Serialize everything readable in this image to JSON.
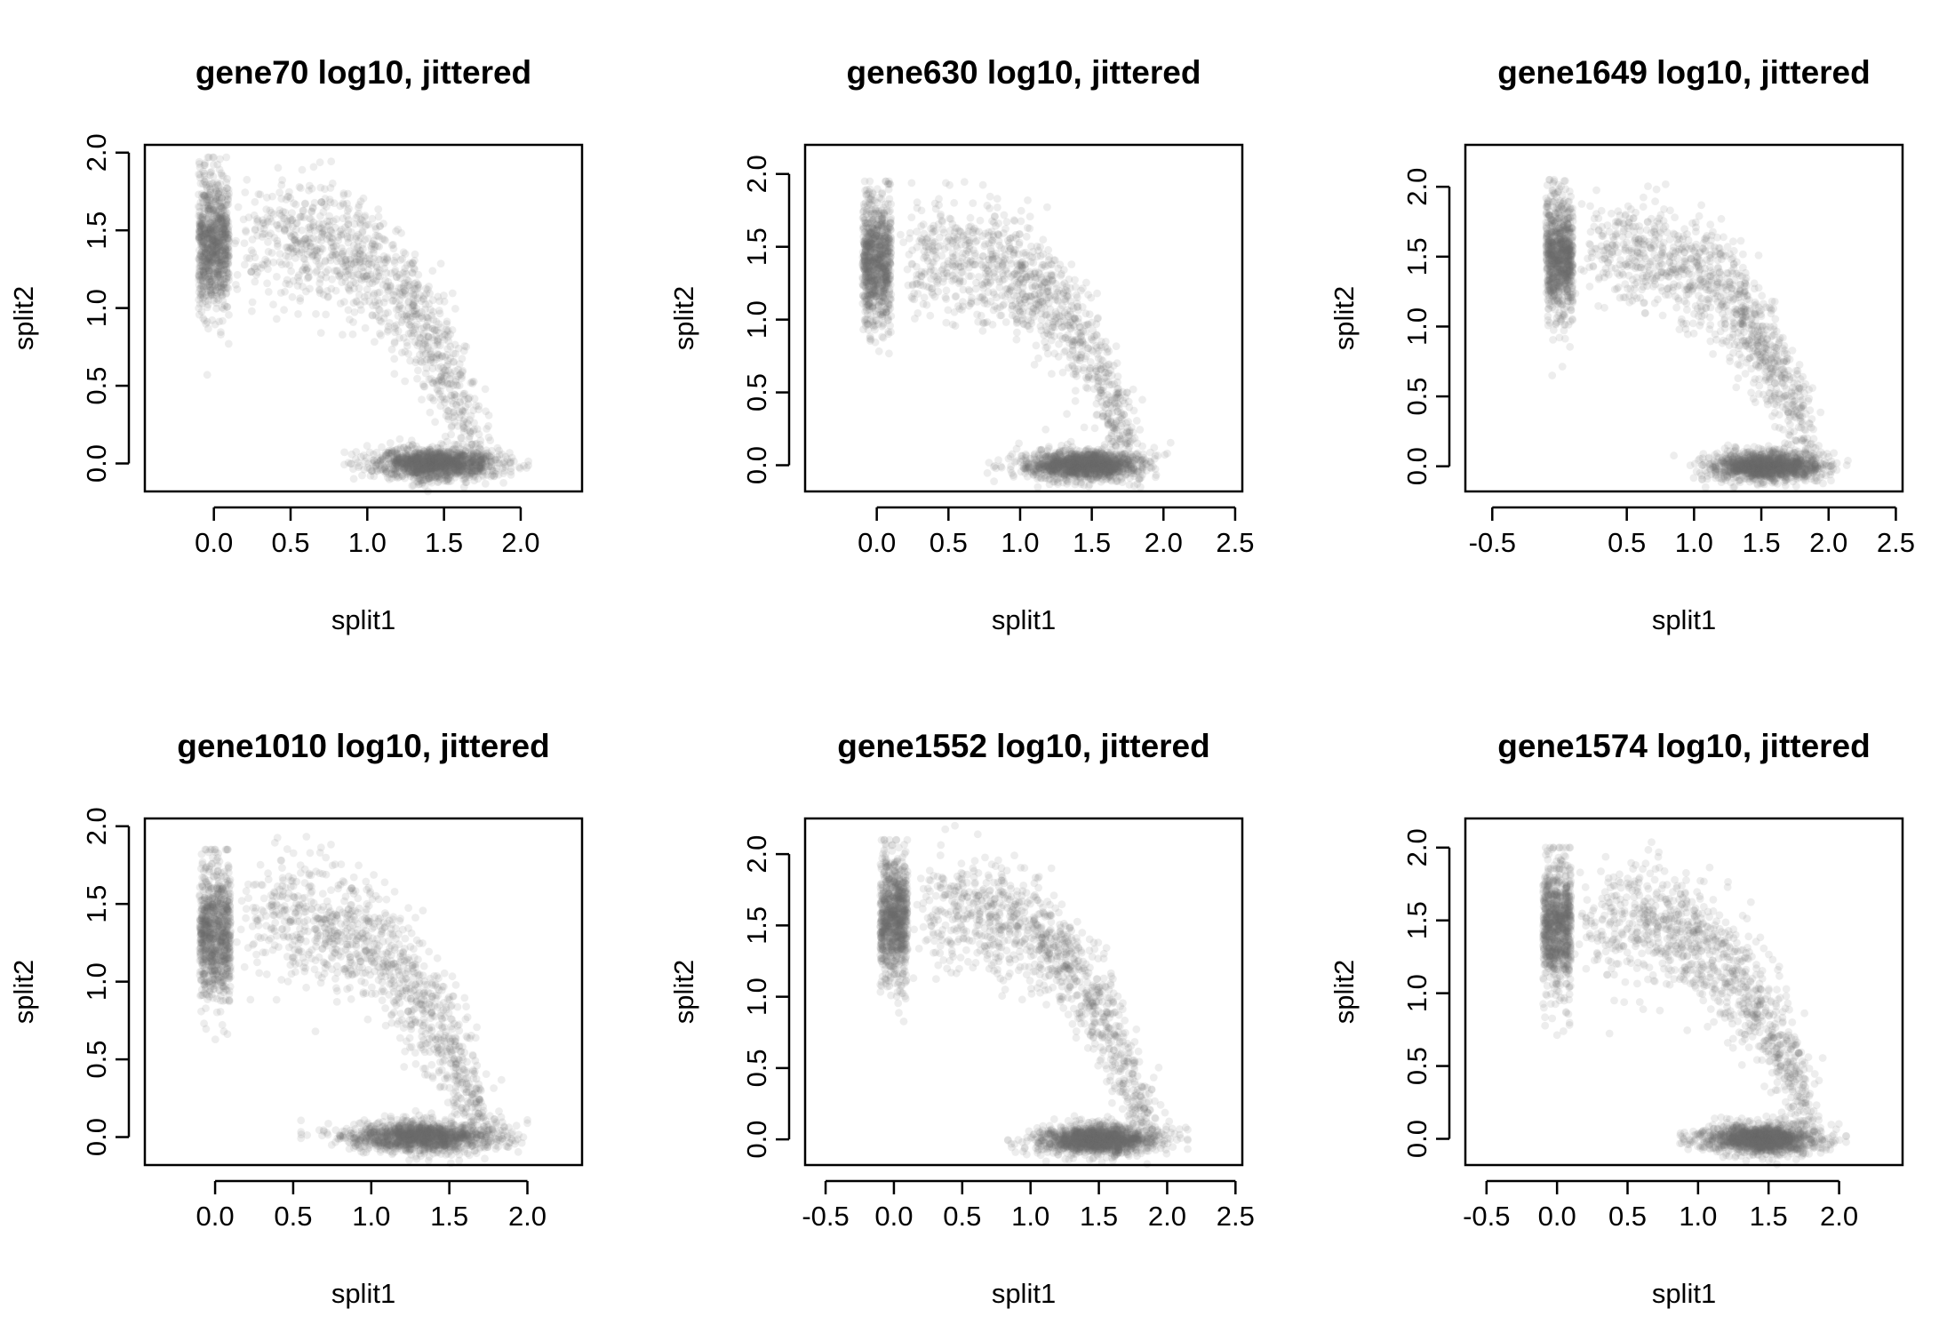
{
  "chart_data": [
    {
      "type": "scatter",
      "title": "gene70 log10, jittered",
      "xlabel": "split1",
      "ylabel": "split2",
      "xlim": [
        -0.45,
        2.4
      ],
      "ylim": [
        -0.18,
        2.05
      ],
      "xticks": [
        "0.0",
        "0.5",
        "1.0",
        "1.5",
        "2.0"
      ],
      "yticks": [
        "0.0",
        "0.5",
        "1.0",
        "1.5",
        "2.0"
      ],
      "point_color": "#6a6a6a",
      "point_alpha": 0.12,
      "clusters": [
        {
          "name": "",
          "x_range": [
            -0.1,
            0.1
          ],
          "y_center": 1.42,
          "y_sd": 0.22,
          "n": 900
        },
        {
          "name": "",
          "x_range": [
            1.0,
            1.9
          ],
          "y_center": 0.0,
          "y_sd": 0.05,
          "n": 1400
        },
        {
          "name": "",
          "x_range": [
            0.2,
            1.75
          ],
          "y_peak": 1.45,
          "n": 1100
        }
      ]
    },
    {
      "type": "scatter",
      "title": "gene630 log10, jittered",
      "xlabel": "split1",
      "ylabel": "split2",
      "xlim": [
        -0.5,
        2.55
      ],
      "ylim": [
        -0.18,
        2.2
      ],
      "xticks": [
        "0.0",
        "0.5",
        "1.0",
        "1.5",
        "2.0",
        "2.5"
      ],
      "yticks": [
        "0.0",
        "0.5",
        "1.0",
        "1.5",
        "2.0"
      ],
      "point_color": "#6a6a6a",
      "point_alpha": 0.12,
      "clusters": [
        {
          "name": "",
          "x_range": [
            -0.1,
            0.1
          ],
          "y_center": 1.4,
          "y_sd": 0.22,
          "n": 900
        },
        {
          "name": "",
          "x_range": [
            1.0,
            1.9
          ],
          "y_center": 0.0,
          "y_sd": 0.05,
          "n": 1400
        },
        {
          "name": "",
          "x_range": [
            0.2,
            1.8
          ],
          "y_peak": 1.45,
          "n": 1100
        }
      ]
    },
    {
      "type": "scatter",
      "title": "gene1649 log10, jittered",
      "xlabel": "split1",
      "ylabel": "split2",
      "xlim": [
        -0.7,
        2.55
      ],
      "ylim": [
        -0.18,
        2.3
      ],
      "xticks": [
        "-0.5",
        "0.5",
        "1.0",
        "1.5",
        "2.0",
        "2.5"
      ],
      "yticks": [
        "0.0",
        "0.5",
        "1.0",
        "1.5",
        "2.0"
      ],
      "point_color": "#6a6a6a",
      "point_alpha": 0.12,
      "clusters": [
        {
          "name": "",
          "x_range": [
            -0.1,
            0.1
          ],
          "y_center": 1.5,
          "y_sd": 0.22,
          "n": 900
        },
        {
          "name": "",
          "x_range": [
            1.1,
            2.0
          ],
          "y_center": 0.0,
          "y_sd": 0.05,
          "n": 1400
        },
        {
          "name": "",
          "x_range": [
            0.2,
            1.9
          ],
          "y_peak": 1.55,
          "n": 1100
        }
      ]
    },
    {
      "type": "scatter",
      "title": "gene1010 log10, jittered",
      "xlabel": "split1",
      "ylabel": "split2",
      "xlim": [
        -0.45,
        2.35
      ],
      "ylim": [
        -0.18,
        2.05
      ],
      "xticks": [
        "0.0",
        "0.5",
        "1.0",
        "1.5",
        "2.0"
      ],
      "yticks": [
        "0.0",
        "0.5",
        "1.0",
        "1.5",
        "2.0"
      ],
      "point_color": "#6a6a6a",
      "point_alpha": 0.12,
      "clusters": [
        {
          "name": "",
          "x_range": [
            -0.1,
            0.1
          ],
          "y_center": 1.3,
          "y_sd": 0.22,
          "n": 900
        },
        {
          "name": "",
          "x_range": [
            0.8,
            1.85
          ],
          "y_center": 0.0,
          "y_sd": 0.05,
          "n": 1400
        },
        {
          "name": "",
          "x_range": [
            0.2,
            1.75
          ],
          "y_peak": 1.4,
          "n": 1100
        }
      ]
    },
    {
      "type": "scatter",
      "title": "gene1552 log10, jittered",
      "xlabel": "split1",
      "ylabel": "split2",
      "xlim": [
        -0.65,
        2.55
      ],
      "ylim": [
        -0.18,
        2.25
      ],
      "xticks": [
        "-0.5",
        "0.0",
        "0.5",
        "1.0",
        "1.5",
        "2.0",
        "2.5"
      ],
      "yticks": [
        "0.0",
        "0.5",
        "1.0",
        "1.5",
        "2.0"
      ],
      "point_color": "#6a6a6a",
      "point_alpha": 0.12,
      "clusters": [
        {
          "name": "",
          "x_range": [
            -0.1,
            0.1
          ],
          "y_center": 1.55,
          "y_sd": 0.22,
          "n": 900
        },
        {
          "name": "",
          "x_range": [
            1.0,
            2.0
          ],
          "y_center": 0.0,
          "y_sd": 0.05,
          "n": 1400
        },
        {
          "name": "",
          "x_range": [
            0.2,
            1.9
          ],
          "y_peak": 1.6,
          "n": 1100
        }
      ]
    },
    {
      "type": "scatter",
      "title": "gene1574 log10, jittered",
      "xlabel": "split1",
      "ylabel": "split2",
      "xlim": [
        -0.65,
        2.45
      ],
      "ylim": [
        -0.18,
        2.2
      ],
      "xticks": [
        "-0.5",
        "0.0",
        "0.5",
        "1.0",
        "1.5",
        "2.0"
      ],
      "yticks": [
        "0.0",
        "0.5",
        "1.0",
        "1.5",
        "2.0"
      ],
      "point_color": "#6a6a6a",
      "point_alpha": 0.12,
      "clusters": [
        {
          "name": "",
          "x_range": [
            -0.1,
            0.1
          ],
          "y_center": 1.45,
          "y_sd": 0.22,
          "n": 900
        },
        {
          "name": "",
          "x_range": [
            1.0,
            1.9
          ],
          "y_center": 0.0,
          "y_sd": 0.05,
          "n": 1400
        },
        {
          "name": "",
          "x_range": [
            0.2,
            1.85
          ],
          "y_peak": 1.5,
          "n": 1100
        }
      ]
    }
  ]
}
